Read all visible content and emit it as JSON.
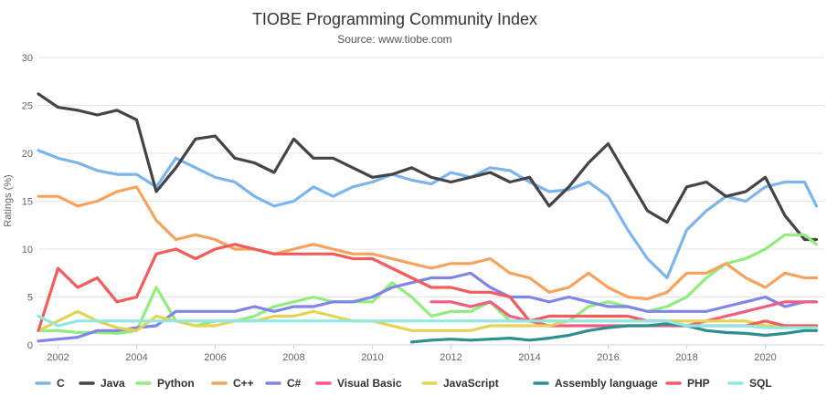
{
  "chart_data": {
    "type": "line",
    "title": "TIOBE Programming Community Index",
    "subtitle": "Source: www.tiobe.com",
    "xlabel": "",
    "ylabel": "Ratings (%)",
    "xlim": [
      2001.5,
      2021.5
    ],
    "ylim": [
      0,
      30
    ],
    "x_ticks": [
      "2002",
      "2004",
      "2006",
      "2008",
      "2010",
      "2012",
      "2014",
      "2016",
      "2018",
      "2020"
    ],
    "y_ticks": [
      "0",
      "5",
      "10",
      "15",
      "20",
      "25",
      "30"
    ],
    "grid": true,
    "legend_position": "bottom",
    "series": [
      {
        "name": "C",
        "color": "#7cb5ec",
        "x": [
          2001.5,
          2002,
          2002.5,
          2003,
          2003.5,
          2004,
          2004.5,
          2005,
          2005.5,
          2006,
          2006.5,
          2007,
          2007.5,
          2008,
          2008.5,
          2009,
          2009.5,
          2010,
          2010.5,
          2011,
          2011.5,
          2012,
          2012.5,
          2013,
          2013.5,
          2014,
          2014.5,
          2015,
          2015.5,
          2016,
          2016.5,
          2017,
          2017.5,
          2018,
          2018.5,
          2019,
          2019.5,
          2020,
          2020.5,
          2021,
          2021.3
        ],
        "y": [
          20.3,
          19.5,
          19.0,
          18.2,
          17.8,
          17.8,
          16.5,
          19.5,
          18.5,
          17.5,
          17.0,
          15.5,
          14.5,
          15.0,
          16.5,
          15.5,
          16.5,
          17.0,
          17.8,
          17.2,
          16.8,
          18.0,
          17.5,
          18.5,
          18.2,
          17.0,
          16.0,
          16.2,
          17.0,
          15.5,
          12.0,
          9.0,
          7.0,
          12.0,
          14.0,
          15.5,
          15.0,
          16.5,
          17.0,
          17.0,
          14.5
        ]
      },
      {
        "name": "Java",
        "color": "#434348",
        "x": [
          2001.5,
          2002,
          2002.5,
          2003,
          2003.5,
          2004,
          2004.5,
          2005,
          2005.5,
          2006,
          2006.5,
          2007,
          2007.5,
          2008,
          2008.5,
          2009,
          2009.5,
          2010,
          2010.5,
          2011,
          2011.5,
          2012,
          2012.5,
          2013,
          2013.5,
          2014,
          2014.5,
          2015,
          2015.5,
          2016,
          2016.5,
          2017,
          2017.5,
          2018,
          2018.5,
          2019,
          2019.5,
          2020,
          2020.5,
          2021,
          2021.3
        ],
        "y": [
          26.2,
          24.8,
          24.5,
          24.0,
          24.5,
          23.5,
          16.0,
          18.5,
          21.5,
          21.8,
          19.5,
          19.0,
          18.0,
          21.5,
          19.5,
          19.5,
          18.5,
          17.5,
          17.8,
          18.5,
          17.5,
          17.0,
          17.5,
          18.0,
          17.0,
          17.5,
          14.5,
          16.5,
          19.0,
          21.0,
          17.5,
          14.0,
          12.8,
          16.5,
          17.0,
          15.5,
          16.0,
          17.5,
          13.5,
          11.0,
          11.0
        ]
      },
      {
        "name": "Python",
        "color": "#90ed7d",
        "x": [
          2001.5,
          2002,
          2002.5,
          2003,
          2003.5,
          2004,
          2004.5,
          2005,
          2005.5,
          2006,
          2006.5,
          2007,
          2007.5,
          2008,
          2008.5,
          2009,
          2009.5,
          2010,
          2010.5,
          2011,
          2011.5,
          2012,
          2012.5,
          2013,
          2013.5,
          2014,
          2014.5,
          2015,
          2015.5,
          2016,
          2016.5,
          2017,
          2017.5,
          2018,
          2018.5,
          2019,
          2019.5,
          2020,
          2020.5,
          2021,
          2021.3
        ],
        "y": [
          1.5,
          1.5,
          1.3,
          1.3,
          1.2,
          1.5,
          6.0,
          2.5,
          2.0,
          2.5,
          2.5,
          3.0,
          4.0,
          4.5,
          5.0,
          4.5,
          4.5,
          4.5,
          6.5,
          5.0,
          3.0,
          3.5,
          3.5,
          4.5,
          2.5,
          2.5,
          2.5,
          2.5,
          4.0,
          4.5,
          4.0,
          3.5,
          4.0,
          5.0,
          7.0,
          8.5,
          9.0,
          10.0,
          11.5,
          11.5,
          10.5
        ]
      },
      {
        "name": "C++",
        "color": "#f7a35c",
        "x": [
          2001.5,
          2002,
          2002.5,
          2003,
          2003.5,
          2004,
          2004.5,
          2005,
          2005.5,
          2006,
          2006.5,
          2007,
          2007.5,
          2008,
          2008.5,
          2009,
          2009.5,
          2010,
          2010.5,
          2011,
          2011.5,
          2012,
          2012.5,
          2013,
          2013.5,
          2014,
          2014.5,
          2015,
          2015.5,
          2016,
          2016.5,
          2017,
          2017.5,
          2018,
          2018.5,
          2019,
          2019.5,
          2020,
          2020.5,
          2021,
          2021.3
        ],
        "y": [
          15.5,
          15.5,
          14.5,
          15.0,
          16.0,
          16.5,
          13.0,
          11.0,
          11.5,
          11.0,
          10.0,
          10.0,
          9.5,
          10.0,
          10.5,
          10.0,
          9.5,
          9.5,
          9.0,
          8.5,
          8.0,
          8.5,
          8.5,
          9.0,
          7.5,
          7.0,
          5.5,
          6.0,
          7.5,
          6.0,
          5.0,
          4.8,
          5.5,
          7.5,
          7.5,
          8.5,
          7.0,
          6.0,
          7.5,
          7.0,
          7.0
        ]
      },
      {
        "name": "C#",
        "color": "#8085e9",
        "x": [
          2001.5,
          2002,
          2002.5,
          2003,
          2003.5,
          2004,
          2004.5,
          2005,
          2005.5,
          2006,
          2006.5,
          2007,
          2007.5,
          2008,
          2008.5,
          2009,
          2009.5,
          2010,
          2010.5,
          2011,
          2011.5,
          2012,
          2012.5,
          2013,
          2013.5,
          2014,
          2014.5,
          2015,
          2015.5,
          2016,
          2016.5,
          2017,
          2017.5,
          2018,
          2018.5,
          2019,
          2019.5,
          2020,
          2020.5,
          2021,
          2021.3
        ],
        "y": [
          0.4,
          0.6,
          0.8,
          1.5,
          1.5,
          1.8,
          2.0,
          3.5,
          3.5,
          3.5,
          3.5,
          4.0,
          3.5,
          4.0,
          4.0,
          4.5,
          4.5,
          5.0,
          6.0,
          6.5,
          7.0,
          7.0,
          7.5,
          6.0,
          5.0,
          5.0,
          4.5,
          5.0,
          4.5,
          4.0,
          4.0,
          3.5,
          3.5,
          3.5,
          3.5,
          4.0,
          4.5,
          5.0,
          4.0,
          4.5,
          4.5
        ]
      },
      {
        "name": "Visual Basic",
        "color": "#f15c80",
        "x": [
          2011.5,
          2012,
          2012.5,
          2013,
          2013.5,
          2014,
          2014.5,
          2015,
          2015.5,
          2016,
          2016.5,
          2017,
          2017.5,
          2018,
          2018.5,
          2019,
          2019.5,
          2020,
          2020.5,
          2021,
          2021.3
        ],
        "y": [
          4.5,
          4.5,
          4.0,
          4.5,
          3.0,
          2.5,
          2.0,
          2.0,
          2.0,
          2.0,
          2.0,
          2.0,
          2.0,
          2.0,
          2.5,
          3.0,
          3.5,
          4.0,
          4.5,
          4.5,
          4.5
        ]
      },
      {
        "name": "JavaScript",
        "color": "#e4d354",
        "x": [
          2001.5,
          2002,
          2002.5,
          2003,
          2003.5,
          2004,
          2004.5,
          2005,
          2005.5,
          2006,
          2006.5,
          2007,
          2007.5,
          2008,
          2008.5,
          2009,
          2009.5,
          2010,
          2010.5,
          2011,
          2011.5,
          2012,
          2012.5,
          2013,
          2013.5,
          2014,
          2014.5,
          2015,
          2015.5,
          2016,
          2016.5,
          2017,
          2017.5,
          2018,
          2018.5,
          2019,
          2019.5,
          2020,
          2020.5,
          2021,
          2021.3
        ],
        "y": [
          1.5,
          2.5,
          3.5,
          2.5,
          1.8,
          1.5,
          3.0,
          2.5,
          2.0,
          2.0,
          2.5,
          2.5,
          3.0,
          3.0,
          3.5,
          3.0,
          2.5,
          2.5,
          2.0,
          1.5,
          1.5,
          1.5,
          1.5,
          2.0,
          2.0,
          2.0,
          2.0,
          2.5,
          2.5,
          2.5,
          2.5,
          2.5,
          2.5,
          2.5,
          2.5,
          2.5,
          2.5,
          2.0,
          2.0,
          2.0,
          2.0
        ]
      },
      {
        "name": "Assembly language",
        "color": "#2b908f",
        "x": [
          2011.0,
          2011.5,
          2012,
          2012.5,
          2013,
          2013.5,
          2014,
          2014.5,
          2015,
          2015.5,
          2016,
          2016.5,
          2017,
          2017.5,
          2018,
          2018.5,
          2019,
          2019.5,
          2020,
          2020.5,
          2021,
          2021.3
        ],
        "y": [
          0.3,
          0.5,
          0.6,
          0.5,
          0.6,
          0.7,
          0.5,
          0.7,
          1.0,
          1.5,
          1.8,
          2.0,
          2.0,
          2.2,
          2.0,
          1.5,
          1.3,
          1.2,
          1.0,
          1.2,
          1.5,
          1.5
        ]
      },
      {
        "name": "PHP",
        "color": "#f45b5b",
        "x": [
          2001.5,
          2002,
          2002.5,
          2003,
          2003.5,
          2004,
          2004.5,
          2005,
          2005.5,
          2006,
          2006.5,
          2007,
          2007.5,
          2008,
          2008.5,
          2009,
          2009.5,
          2010,
          2010.5,
          2011,
          2011.5,
          2012,
          2012.5,
          2013,
          2013.5,
          2014,
          2014.5,
          2015,
          2015.5,
          2016,
          2016.5,
          2017,
          2017.5,
          2018,
          2018.5,
          2019,
          2019.5,
          2020,
          2020.5,
          2021,
          2021.3
        ],
        "y": [
          1.5,
          8.0,
          6.0,
          7.0,
          4.5,
          5.0,
          9.5,
          10.0,
          9.0,
          10.0,
          10.5,
          10.0,
          9.5,
          9.5,
          9.5,
          9.5,
          9.0,
          9.0,
          8.0,
          7.0,
          6.0,
          6.0,
          5.5,
          5.5,
          5.0,
          2.5,
          3.0,
          3.0,
          3.0,
          3.0,
          3.0,
          2.5,
          2.5,
          2.0,
          2.0,
          2.0,
          2.0,
          2.5,
          2.0,
          2.0,
          2.0
        ]
      },
      {
        "name": "SQL",
        "color": "#91e8e1",
        "x": [
          2001.5,
          2002,
          2002.5,
          2003,
          2003.5,
          2004,
          2004.5,
          2005,
          2005.5,
          2006,
          2006.5,
          2007,
          2007.5,
          2008,
          2008.5,
          2009,
          2009.5,
          2010,
          2010.5,
          2011,
          2011.5,
          2012,
          2012.5,
          2013,
          2013.5,
          2014,
          2014.5,
          2015,
          2015.5,
          2016,
          2016.5,
          2017,
          2017.5,
          2018,
          2018.5,
          2019,
          2019.5,
          2020,
          2020.5,
          2021,
          2021.3
        ],
        "y": [
          3.0,
          2.0,
          2.5,
          2.5,
          2.5,
          2.5,
          2.5,
          2.5,
          2.5,
          2.5,
          2.5,
          2.5,
          2.5,
          2.5,
          2.5,
          2.5,
          2.5,
          2.5,
          2.5,
          2.5,
          2.5,
          2.5,
          2.5,
          2.5,
          2.5,
          2.5,
          2.5,
          2.5,
          2.5,
          2.5,
          2.5,
          2.5,
          2.5,
          2.0,
          2.0,
          2.0,
          2.0,
          1.8,
          1.8,
          1.8,
          1.8
        ]
      }
    ]
  }
}
